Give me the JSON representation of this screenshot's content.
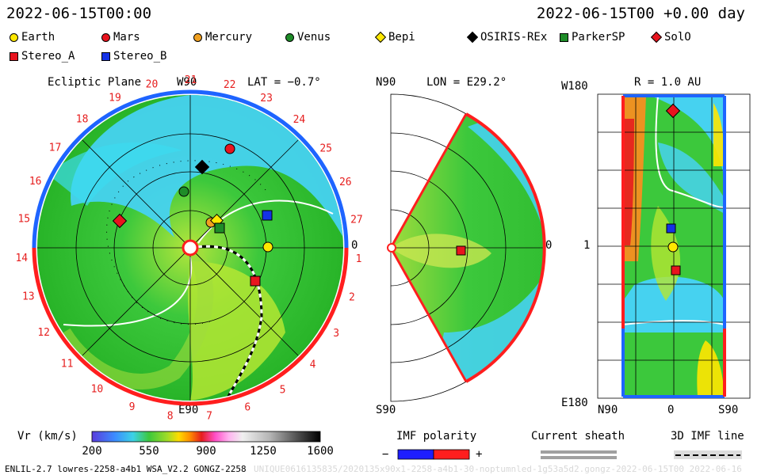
{
  "header": {
    "left_title": "2022-06-15T00:00",
    "right_title": "2022-06-15T00 +0.00 day"
  },
  "legend": [
    {
      "name": "Earth",
      "shape": "circle",
      "color": "#ffe800"
    },
    {
      "name": "Mars",
      "shape": "circle",
      "color": "#e8141e"
    },
    {
      "name": "Mercury",
      "shape": "circle",
      "color": "#f0a020"
    },
    {
      "name": "Venus",
      "shape": "circle",
      "color": "#1e8c28"
    },
    {
      "name": "Bepi",
      "shape": "diamond",
      "color": "#ffe800"
    },
    {
      "name": "OSIRIS-REx",
      "shape": "diamond",
      "color": "#000000"
    },
    {
      "name": "ParkerSP",
      "shape": "square",
      "color": "#1e8c28"
    },
    {
      "name": "SolO",
      "shape": "diamond",
      "color": "#e8141e"
    },
    {
      "name": "Stereo_A",
      "shape": "square",
      "color": "#e8141e"
    },
    {
      "name": "Stereo_B",
      "shape": "square",
      "color": "#1432e6"
    }
  ],
  "ecliptic_panel": {
    "title": "Ecliptic Plane",
    "top_label": "W90",
    "bottom_label": "E90",
    "right_label": "0",
    "lat_label": "LAT = −0.7°",
    "carrington_labels": [
      "1",
      "2",
      "3",
      "4",
      "5",
      "6",
      "7",
      "8",
      "9",
      "10",
      "11",
      "12",
      "13",
      "14",
      "15",
      "16",
      "17",
      "18",
      "19",
      "20",
      "21",
      "22",
      "23",
      "24",
      "25",
      "26",
      "27"
    ]
  },
  "meridional_panel": {
    "top_label": "N90",
    "bottom_label": "S90",
    "right_label": "0",
    "lon_label": "LON = E29.2°"
  },
  "radial_panel": {
    "r_label": "R = 1.0 AU",
    "top_left": "W180",
    "bottom_left": "E180",
    "mid_left": "1",
    "bottom_axis": [
      "N90",
      "0",
      "S90"
    ]
  },
  "colorbar": {
    "label": "Vr (km/s)",
    "ticks": [
      "200",
      "550",
      "900",
      "1250",
      "1600"
    ]
  },
  "imf_polarity": {
    "title": "IMF polarity",
    "minus": "−",
    "plus": "+"
  },
  "current_sheath": {
    "title": "Current sheath"
  },
  "imf_line": {
    "title": "3D IMF line"
  },
  "footer": {
    "left": "ENLIL-2.7 lowres-2258-a4b1 WSA_V2.2 GONGZ-2258",
    "right": "UNIQUE0616135835/2020135x90x1-2258-a4b1-30-noptumnled-1g53a5d2.gongz-2022-06-15T00  2022-06-16"
  },
  "colors": {
    "ecliptic_rim_top": "#1e64ff",
    "ecliptic_rim_bottom": "#ff1e1e",
    "background_flow": "#3cc83c",
    "fast_flow": "#96dc3c",
    "slow_flow": "#46dcf0"
  },
  "chart_data": [
    {
      "type": "heatmap",
      "title": "Ecliptic Plane",
      "quantity": "Vr (km/s)",
      "bodies": [
        "Earth",
        "Mars",
        "Mercury",
        "Venus",
        "Bepi",
        "OSIRIS-REx",
        "ParkerSP",
        "SolO",
        "Stereo_A",
        "Stereo_B"
      ],
      "annotations": [
        "LAT = −0.7°",
        "W90",
        "E90",
        "0"
      ]
    },
    {
      "type": "heatmap",
      "title": "",
      "quantity": "Vr (km/s)",
      "annotations": [
        "LON = E29.2°",
        "N90",
        "S90",
        "0"
      ]
    },
    {
      "type": "heatmap",
      "title": "",
      "quantity": "Vr (km/s)",
      "annotations": [
        "R = 1.0 AU",
        "W180",
        "E180",
        "1",
        "N90",
        "0",
        "S90"
      ]
    },
    {
      "type": "heatmap",
      "title": "Vr (km/s)",
      "x": [
        200,
        550,
        900,
        1250,
        1600
      ],
      "xlim": [
        200,
        1600
      ]
    }
  ]
}
